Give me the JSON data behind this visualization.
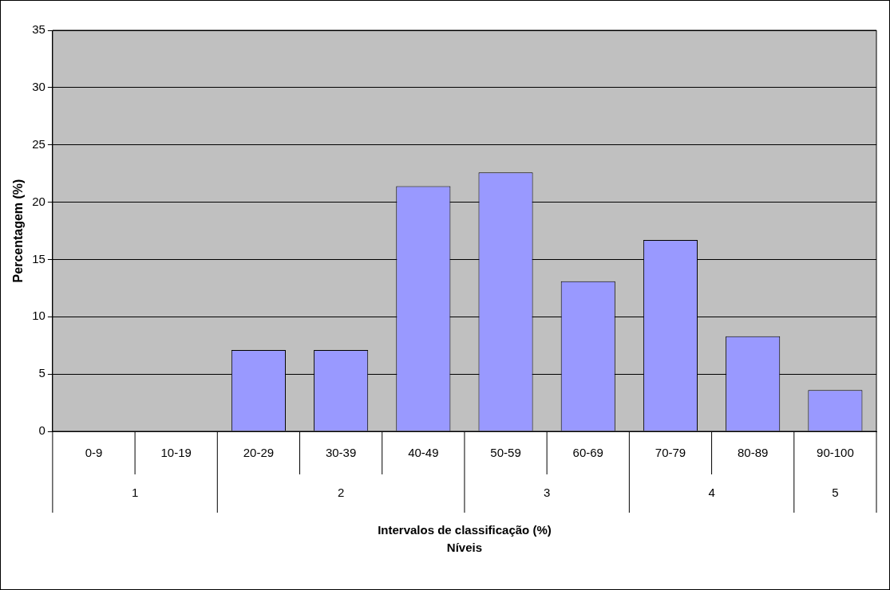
{
  "chart_data": {
    "type": "bar",
    "ylabel": "Percentagem (%)",
    "categories": [
      "0-9",
      "10-19",
      "20-29",
      "30-39",
      "40-49",
      "50-59",
      "60-69",
      "70-79",
      "80-89",
      "90-100"
    ],
    "values": [
      0,
      0,
      7.1,
      7.1,
      21.4,
      22.6,
      13.1,
      16.7,
      8.3,
      3.6
    ],
    "color": "#9999ff",
    "ylim": [
      0,
      35
    ],
    "yticks": [
      0,
      5,
      10,
      15,
      20,
      25,
      30,
      35
    ],
    "grid": "y",
    "legend": false,
    "annotations": [
      "1",
      "2",
      "3",
      "4",
      "5",
      "Intervalos de classificação (%)",
      "Níveis"
    ]
  }
}
